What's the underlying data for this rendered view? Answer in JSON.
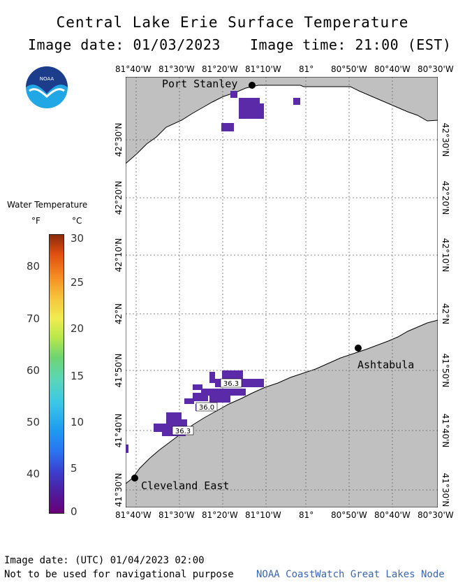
{
  "title": "Central Lake Erie Surface Temperature",
  "image_date_label": "Image date: 01/03/2023",
  "image_time_label": "Image time: 21:00 (EST)",
  "logo_text": "NOAA",
  "lon_ticks": [
    "81°40'W",
    "81°30'W",
    "81°20'W",
    "81°10'W",
    "81°",
    "80°50'W",
    "80°40'W",
    "80°30'W"
  ],
  "lat_ticks": [
    "42°30'N",
    "42°20'N",
    "42°10'N",
    "42°N",
    "41°50'N",
    "41°40'N",
    "41°30'N"
  ],
  "places": {
    "port_stanley": "Port Stanley",
    "ashtabula": "Ashtabula",
    "cleveland_east": "Cleveland East"
  },
  "readings": [
    "36.3",
    "36.0",
    "36.3"
  ],
  "legend": {
    "title": "Water Temperature",
    "unit_f": "°F",
    "unit_c": "°C",
    "f_ticks": [
      "80",
      "70",
      "60",
      "50",
      "40"
    ],
    "c_ticks": [
      "30",
      "25",
      "20",
      "15",
      "10",
      "5",
      "0"
    ]
  },
  "colors": {
    "land": "#c0c0c0",
    "water": "#ffffff",
    "cold_pixel": "#5a2aa8"
  },
  "footer": {
    "utc_date": "Image date: (UTC) 01/04/2023  02:00",
    "disclaimer": "Not to be used for navigational purpose",
    "credit": "NOAA CoastWatch Great Lakes Node"
  }
}
